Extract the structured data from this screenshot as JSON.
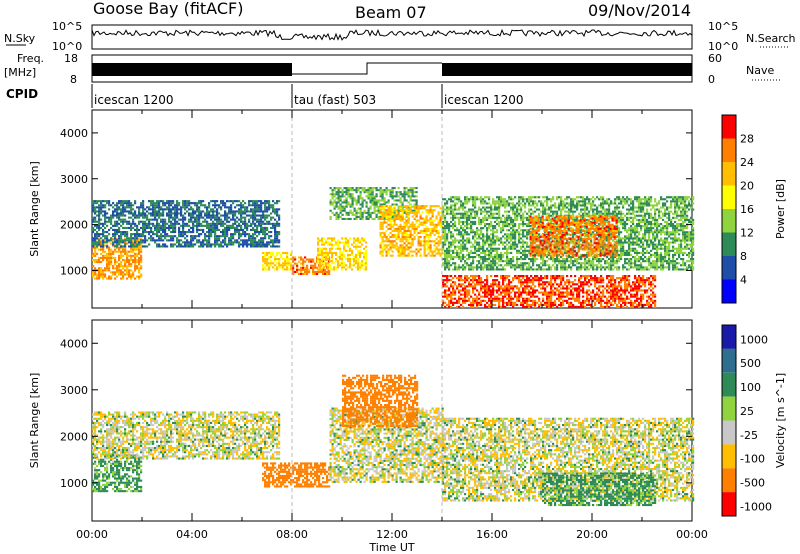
{
  "header": {
    "station": "Goose Bay (fitACF)",
    "beam": "Beam 07",
    "date": "09/Nov/2014"
  },
  "top_panels": {
    "nsky_label": "N.Sky",
    "nsky_ticks": [
      "10^5",
      "10^0"
    ],
    "nsearch_label": "N.Search",
    "nsearch_ticks": [
      "10^5",
      "10^0"
    ],
    "freq_label": "Freq.",
    "freq_unit": "[MHz]",
    "freq_ticks": [
      "18",
      "8"
    ],
    "nave_label": "Nave",
    "nave_ticks": [
      "60",
      "0"
    ],
    "cpid_label": "CPID",
    "cpid_segments": [
      {
        "name": "icescan 1200",
        "start_h": 0,
        "end_h": 8
      },
      {
        "name": "tau (fast) 503",
        "start_h": 8,
        "end_h": 14
      },
      {
        "name": "icescan 1200",
        "start_h": 14,
        "end_h": 24
      }
    ]
  },
  "chart_data": [
    {
      "type": "heatmap",
      "title": "",
      "quantity": "Power",
      "colorbar_label": "Power [dB]",
      "colorbar_ticks": [
        "28",
        "24",
        "20",
        "16",
        "12",
        "8",
        "4"
      ],
      "colorbar_colors": [
        "#ff0000",
        "#ff7f00",
        "#ffbf00",
        "#ffff00",
        "#8fd33f",
        "#2e8b57",
        "#1f4ea8",
        "#0000ff"
      ],
      "ylabel": "Slant Range [km]",
      "yticks": [
        "4000",
        "3000",
        "2000",
        "1000"
      ],
      "ylim": [
        180,
        4500
      ],
      "xlim": [
        0,
        24
      ],
      "regions": [
        {
          "t0": 0,
          "t1": 2.0,
          "r0": 800,
          "r1": 1700,
          "value": 24
        },
        {
          "t0": 0,
          "t1": 7.5,
          "r0": 1500,
          "r1": 2500,
          "value": 8
        },
        {
          "t0": 6.8,
          "t1": 8.0,
          "r0": 1000,
          "r1": 1400,
          "value": 20
        },
        {
          "t0": 8.0,
          "t1": 9.5,
          "r0": 900,
          "r1": 1300,
          "value": 26
        },
        {
          "t0": 9.0,
          "t1": 11.0,
          "r0": 1000,
          "r1": 1700,
          "value": 20
        },
        {
          "t0": 9.5,
          "t1": 13.0,
          "r0": 2100,
          "r1": 2800,
          "value": 12
        },
        {
          "t0": 11.5,
          "t1": 14.0,
          "r0": 1300,
          "r1": 2400,
          "value": 22
        },
        {
          "t0": 14.0,
          "t1": 24.0,
          "r0": 1000,
          "r1": 2600,
          "value": 12
        },
        {
          "t0": 17.5,
          "t1": 21.0,
          "r0": 1300,
          "r1": 2200,
          "value": 26
        },
        {
          "t0": 14.0,
          "t1": 22.5,
          "r0": 180,
          "r1": 900,
          "value": 28
        }
      ]
    },
    {
      "type": "heatmap",
      "title": "",
      "quantity": "Velocity",
      "colorbar_label": "Velocity [m s^-1]",
      "colorbar_ticks": [
        "1000",
        "500",
        "100",
        "25",
        "-25",
        "-100",
        "-500",
        "-1000"
      ],
      "colorbar_colors": [
        "#1a1aa8",
        "#2e6e8e",
        "#2e8b57",
        "#8fd33f",
        "#c8c8c8",
        "#ffbf00",
        "#ff7f00",
        "#ff0000"
      ],
      "ylabel": "Slant Range [km]",
      "yticks": [
        "4000",
        "3000",
        "2000",
        "1000"
      ],
      "ylim": [
        180,
        4500
      ],
      "xlim": [
        0,
        24
      ],
      "xlabel": "Time UT",
      "xticks": [
        "00:00",
        "04:00",
        "08:00",
        "12:00",
        "16:00",
        "20:00",
        "00:00"
      ],
      "regions": [
        {
          "t0": 0,
          "t1": 2.0,
          "r0": 800,
          "r1": 1600,
          "value": 100
        },
        {
          "t0": 0,
          "t1": 7.5,
          "r0": 1500,
          "r1": 2500,
          "value": 0
        },
        {
          "t0": 6.8,
          "t1": 9.5,
          "r0": 900,
          "r1": 1400,
          "value": -300
        },
        {
          "t0": 9.5,
          "t1": 14.0,
          "r0": 1000,
          "r1": 2600,
          "value": 0
        },
        {
          "t0": 14.0,
          "t1": 24.0,
          "r0": 600,
          "r1": 2400,
          "value": 0
        },
        {
          "t0": 18.0,
          "t1": 22.5,
          "r0": 500,
          "r1": 1200,
          "value": 100
        },
        {
          "t0": 10.0,
          "t1": 13.0,
          "r0": 2200,
          "r1": 3300,
          "value": -300
        }
      ]
    }
  ]
}
